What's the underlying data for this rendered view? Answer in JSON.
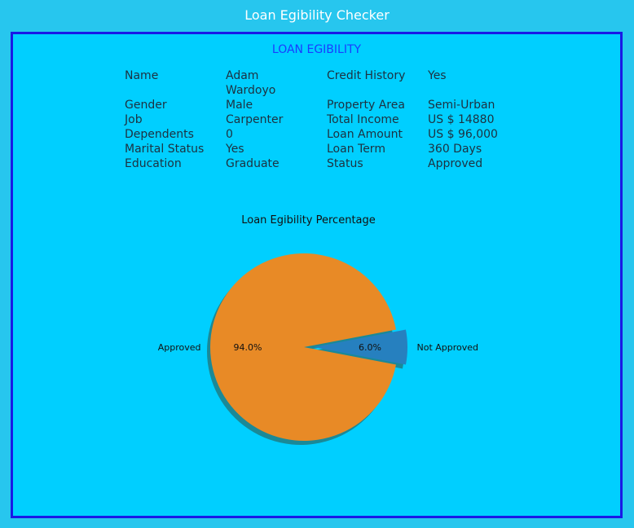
{
  "window": {
    "title": "Loan Egibility Checker"
  },
  "panel": {
    "title": "LOAN EGIBILITY"
  },
  "applicant": {
    "left": [
      {
        "label": "Name",
        "value": "Adam Wardoyo"
      },
      {
        "label": "Gender",
        "value": "Male"
      },
      {
        "label": "Job",
        "value": "Carpenter"
      },
      {
        "label": "Dependents",
        "value": "0"
      },
      {
        "label": "Marital Status",
        "value": "Yes"
      },
      {
        "label": "Education",
        "value": "Graduate"
      }
    ],
    "right": [
      {
        "label": "Credit History",
        "value": "Yes"
      },
      {
        "label": "Property Area",
        "value": "Semi-Urban"
      },
      {
        "label": "Total Income",
        "value": "US $ 14880"
      },
      {
        "label": "Loan Amount",
        "value": "US $ 96,000"
      },
      {
        "label": "Loan Term",
        "value": "360 Days"
      },
      {
        "label": "Status",
        "value": "Approved"
      }
    ]
  },
  "chart_data": {
    "type": "pie",
    "title": "Loan Egibility Percentage",
    "slices": [
      {
        "label": "Approved",
        "value": 94.0,
        "pct_label": "94.0%",
        "color": "#e88a26",
        "exploded": false
      },
      {
        "label": "Not Approved",
        "value": 6.0,
        "pct_label": "6.0%",
        "color": "#2680bf",
        "exploded": true
      }
    ],
    "shadow": true
  }
}
